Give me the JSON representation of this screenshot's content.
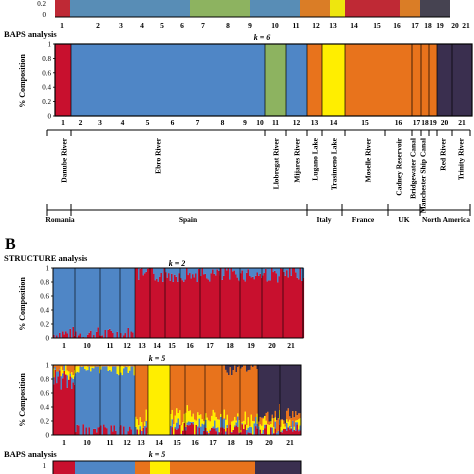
{
  "colors": {
    "red": "#c8102e",
    "blue": "#4f86c6",
    "green": "#8db360",
    "orange": "#e8731c",
    "yellow": "#ffee00",
    "purple": "#3a2f4f",
    "frame": "#000000"
  },
  "panel_a": {
    "structure_strip_labels": [
      "1",
      "2",
      "3",
      "4",
      "5",
      "6",
      "7",
      "8",
      "9",
      "10",
      "11",
      "12",
      "13",
      "14",
      "15",
      "16",
      "17",
      "18",
      "19",
      "20",
      "21"
    ],
    "baps_title": "BAPS analysis",
    "k_label": "k = 6",
    "ylabel": "% Composition",
    "yticks": [
      "0",
      "0.2",
      "0.4",
      "0.6",
      "0.8",
      "1"
    ],
    "pop_numbers": [
      "1",
      "2",
      "3",
      "4",
      "5",
      "6",
      "7",
      "8",
      "9",
      "10",
      "11",
      "12",
      "13",
      "14",
      "15",
      "16",
      "17",
      "18",
      "19",
      "20",
      "21"
    ],
    "localities": [
      "Danube River",
      "Ebro River",
      "Llobregat River",
      "Mijares River",
      "Lugano Lake",
      "Trasimeno Lake",
      "Moselle River",
      "Cadney Reservoir",
      "Bridgewater Canal",
      "Manchester Ship Canal",
      "Red River",
      "Trinity River"
    ],
    "countries": [
      "Romania",
      "Spain",
      "Italy",
      "France",
      "UK",
      "North America"
    ]
  },
  "panel_b": {
    "letter": "B",
    "title": "STRUCTURE analysis",
    "k2_label": "k = 2",
    "k5_label": "k = 5",
    "ylabel": "% Composition",
    "yticks": [
      "0",
      "0.2",
      "0.4",
      "0.6",
      "0.8",
      "1"
    ],
    "x_labels": [
      "1",
      "10",
      "11",
      "12",
      "13",
      "14",
      "15",
      "16",
      "17",
      "18",
      "19",
      "20",
      "21"
    ],
    "baps_title": "BAPS analysis",
    "baps_k_label": "k = 5"
  },
  "chart_data": [
    {
      "type": "bar",
      "title": "BAPS analysis",
      "subtitle": "k = 6",
      "ylabel": "% Composition",
      "ylim": [
        0,
        1
      ],
      "categories": [
        "1",
        "2",
        "3",
        "4",
        "5",
        "6",
        "7",
        "8",
        "9",
        "10",
        "11",
        "12",
        "13",
        "14",
        "15",
        "16",
        "17",
        "18",
        "19",
        "20",
        "21"
      ],
      "series": [
        {
          "values": [
            1,
            0,
            0,
            0,
            0,
            0,
            0,
            0,
            0,
            0,
            0,
            0,
            0,
            0,
            0,
            0,
            0,
            0,
            0,
            0,
            0
          ]
        },
        {
          "values": [
            0,
            1,
            1,
            1,
            1,
            1,
            1,
            1,
            1,
            1,
            0,
            1,
            0,
            0,
            0,
            0,
            0,
            0,
            0,
            0,
            0
          ]
        },
        {
          "values": [
            0,
            0,
            0,
            0,
            0,
            0,
            0,
            0,
            0,
            0,
            1,
            0,
            0,
            0,
            0,
            0,
            0,
            0,
            0,
            0,
            0
          ]
        },
        {
          "values": [
            0,
            0,
            0,
            0,
            0,
            0,
            0,
            0,
            0,
            0,
            0,
            0,
            1,
            0,
            1,
            1,
            1,
            1,
            1,
            0,
            0
          ]
        },
        {
          "values": [
            0,
            0,
            0,
            0,
            0,
            0,
            0,
            0,
            0,
            0,
            0,
            0,
            0,
            1,
            0,
            0,
            0,
            0,
            0,
            0,
            0
          ]
        },
        {
          "values": [
            0,
            0,
            0,
            0,
            0,
            0,
            0,
            0,
            0,
            0,
            0,
            0,
            0,
            0,
            0,
            0,
            0,
            0,
            0,
            1,
            1
          ]
        }
      ]
    },
    {
      "type": "bar",
      "title": "STRUCTURE analysis",
      "subtitle": "k = 2",
      "ylabel": "% Composition",
      "ylim": [
        0,
        1
      ],
      "categories": [
        "1",
        "10",
        "11",
        "12",
        "13",
        "14",
        "15",
        "16",
        "17",
        "18",
        "19",
        "20",
        "21"
      ],
      "series": [
        {
          "values": [
            0.05,
            0.05,
            0.05,
            0.05,
            0.9,
            0.9,
            0.9,
            0.9,
            0.9,
            0.9,
            0.9,
            0.9,
            0.9
          ]
        },
        {
          "values": [
            0.95,
            0.95,
            0.95,
            0.95,
            0.1,
            0.1,
            0.1,
            0.1,
            0.1,
            0.1,
            0.1,
            0.1,
            0.1
          ]
        }
      ]
    },
    {
      "type": "bar",
      "title": "STRUCTURE analysis",
      "subtitle": "k = 5",
      "ylabel": "% Composition",
      "ylim": [
        0,
        1
      ],
      "categories": [
        "1",
        "10",
        "11",
        "12",
        "13",
        "14",
        "15",
        "16",
        "17",
        "18",
        "19",
        "20",
        "21"
      ],
      "series": [
        {
          "values": [
            0.8,
            0.05,
            0.05,
            0.05,
            0.05,
            0,
            0.05,
            0.05,
            0.05,
            0.05,
            0.05,
            0.05,
            0.05
          ]
        },
        {
          "values": [
            0.1,
            0.9,
            0.9,
            0.9,
            0.05,
            0,
            0.05,
            0.05,
            0.05,
            0.05,
            0.05,
            0.05,
            0.05
          ]
        },
        {
          "values": [
            0.05,
            0.03,
            0.03,
            0.03,
            0.1,
            1,
            0.15,
            0.15,
            0.15,
            0.1,
            0.1,
            0.05,
            0.05
          ]
        },
        {
          "values": [
            0.05,
            0.02,
            0.02,
            0.02,
            0.8,
            0,
            0.75,
            0.75,
            0.75,
            0.75,
            0.75,
            0.1,
            0.1
          ]
        },
        {
          "values": [
            0,
            0,
            0,
            0,
            0,
            0,
            0,
            0,
            0,
            0.05,
            0.05,
            0.75,
            0.75
          ]
        }
      ]
    }
  ]
}
